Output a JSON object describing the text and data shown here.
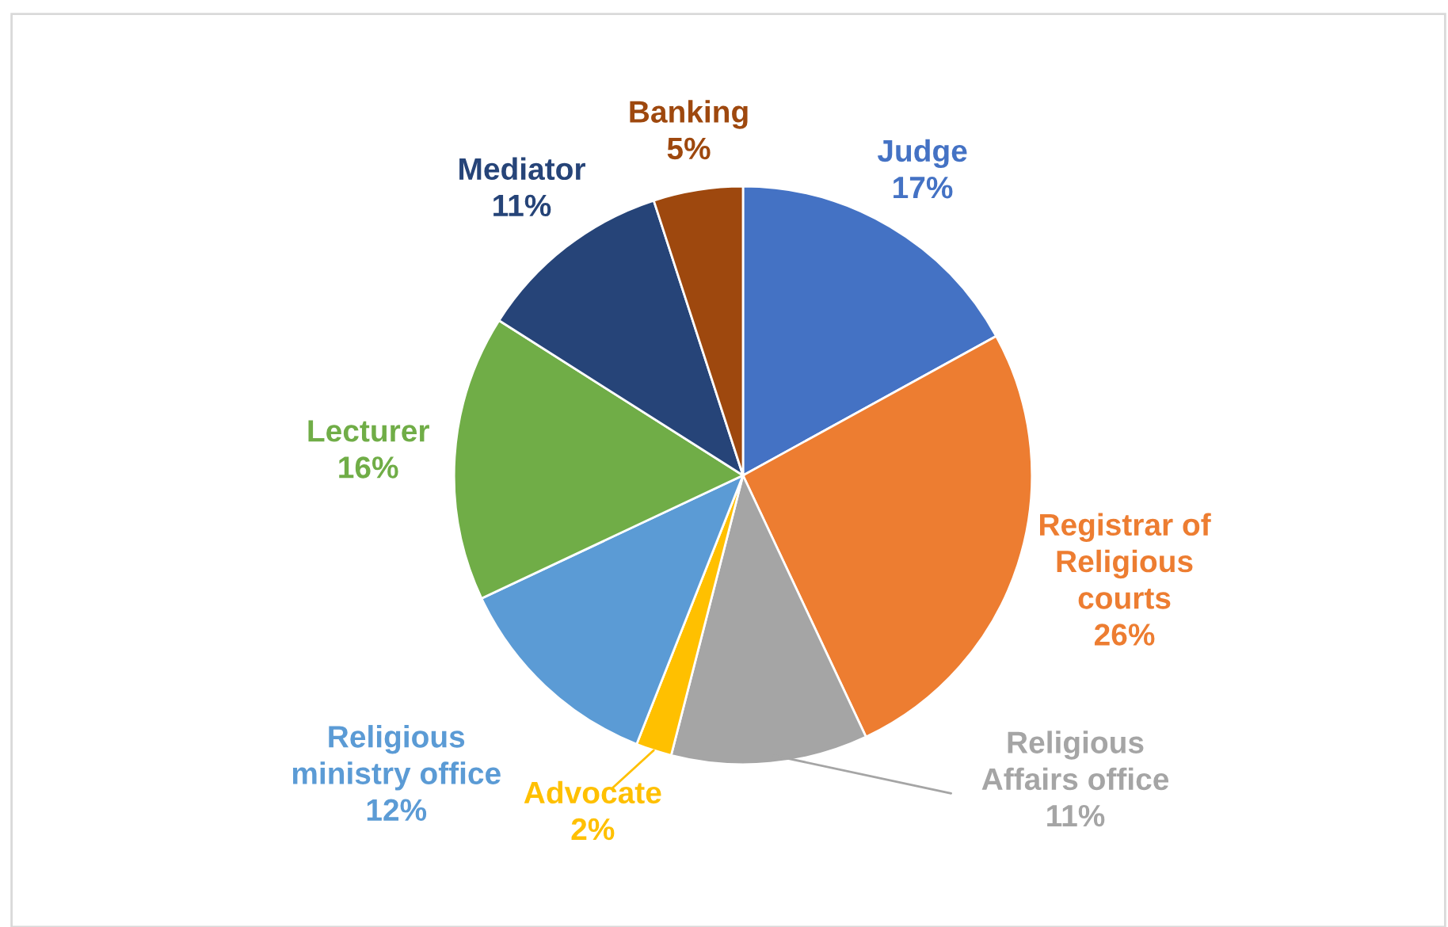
{
  "chart_data": {
    "type": "pie",
    "categories": [
      "Judge",
      "Registrar of\nReligious\ncourts",
      "Religious\nAffairs office",
      "Advocate",
      "Religious\nministry office",
      "Lecturer",
      "Mediator",
      "Banking"
    ],
    "values": [
      17,
      26,
      11,
      2,
      12,
      16,
      11,
      5
    ],
    "colors": [
      "#4472c4",
      "#ed7d31",
      "#a5a5a5",
      "#ffc000",
      "#5b9bd5",
      "#70ad47",
      "#264478",
      "#9e480e"
    ],
    "value_labels": [
      "17%",
      "26%",
      "11%",
      "2%",
      "12%",
      "16%",
      "11%",
      "5%"
    ],
    "legend": false
  }
}
